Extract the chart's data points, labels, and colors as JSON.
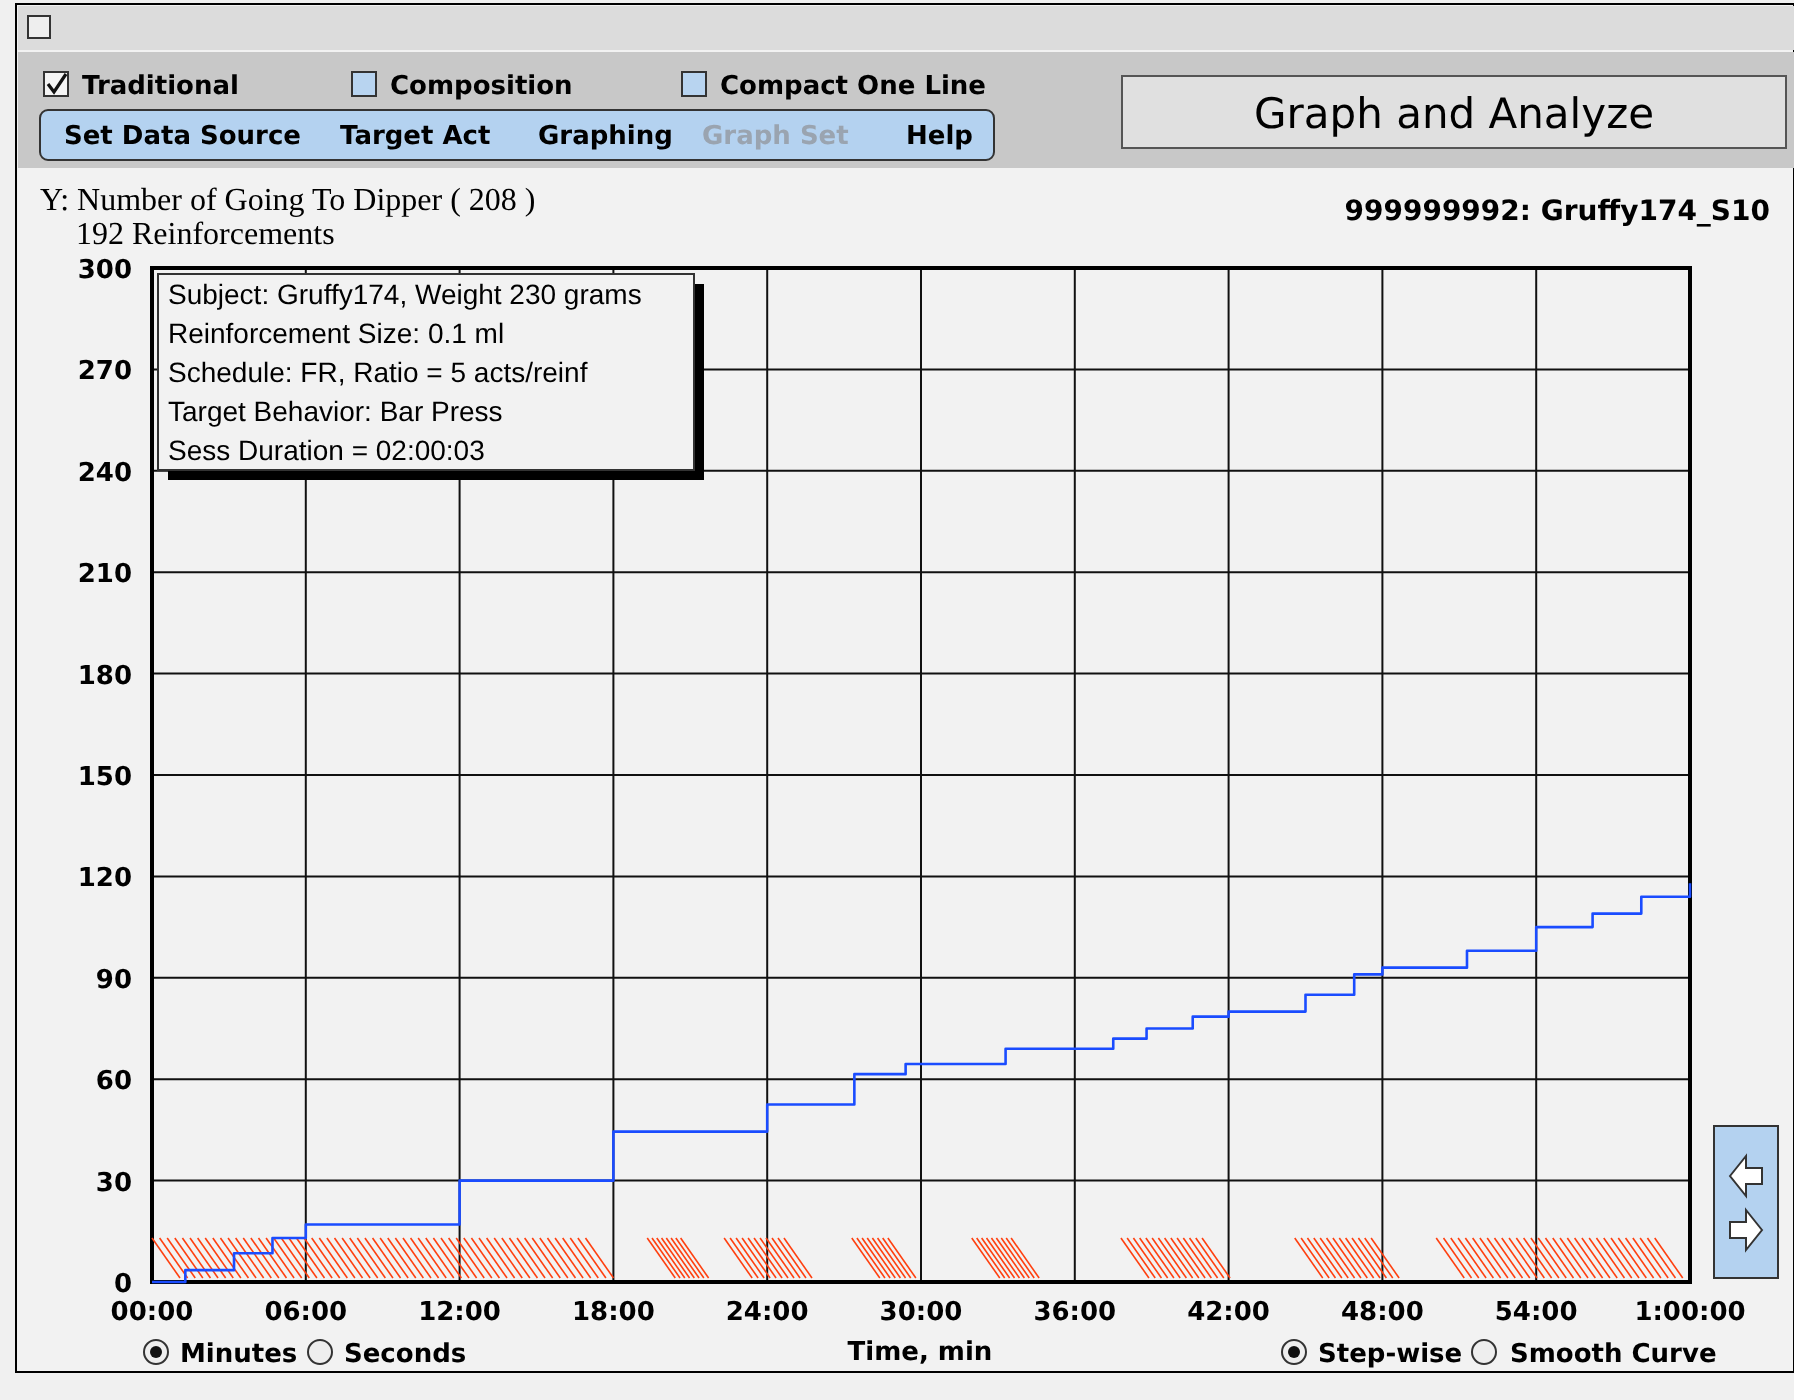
{
  "chart_data": {
    "type": "step",
    "ylabel": "Y: Number of Going To Dipper ( 208 )",
    "subtitle": "192 Reinforcements",
    "xlabel": "Time, min",
    "x": [
      0,
      1.3,
      3.2,
      4.7,
      6,
      12,
      18,
      24,
      27.4,
      29.4,
      32.5,
      33.3,
      36,
      37.5,
      38.8,
      40.6,
      42,
      45,
      46.9,
      48,
      51.3,
      54,
      56.2,
      58.1,
      60
    ],
    "series": [
      {
        "color": "#1a4cff",
        "values": [
          0,
          3.5,
          8.5,
          13,
          17,
          30,
          44.5,
          52.5,
          61.5,
          64.5,
          64.5,
          69,
          69,
          72,
          75,
          78.5,
          80,
          85,
          91,
          93,
          98,
          105,
          109,
          114,
          118
        ]
      }
    ],
    "xlim": [
      0,
      60
    ],
    "xticks": [
      {
        "value": 0,
        "label": "00:00"
      },
      {
        "value": 6,
        "label": "06:00"
      },
      {
        "value": 12,
        "label": "12:00"
      },
      {
        "value": 18,
        "label": "18:00"
      },
      {
        "value": 24,
        "label": "24:00"
      },
      {
        "value": 30,
        "label": "30:00"
      },
      {
        "value": 36,
        "label": "36:00"
      },
      {
        "value": 42,
        "label": "42:00"
      },
      {
        "value": 48,
        "label": "48:00"
      },
      {
        "value": 54,
        "label": "54:00"
      },
      {
        "value": 60,
        "label": "1:00:00"
      }
    ],
    "ylim": [
      0,
      300
    ],
    "yticks": [
      0,
      30,
      60,
      90,
      120,
      150,
      180,
      210,
      240,
      270,
      300
    ],
    "grid": true,
    "annotations": [
      "999999992: Gruffy174_S10",
      "Subject: Gruffy174, Weight 230 grams",
      "Reinforcement Size: 0.1 ml",
      "Schedule: FR, Ratio = 5 acts/reinf",
      "Target Behavior: Bar Press",
      "Sess Duration = 02:00:03",
      "Traditional",
      "Composition",
      "Compact One Line",
      "Set Data Source",
      "Target Act",
      "Graphing",
      "Graph Set",
      "Help",
      "Graph and Analyze",
      "Minutes",
      "Seconds",
      "Step-wise",
      "Smooth Curve"
    ]
  }
}
